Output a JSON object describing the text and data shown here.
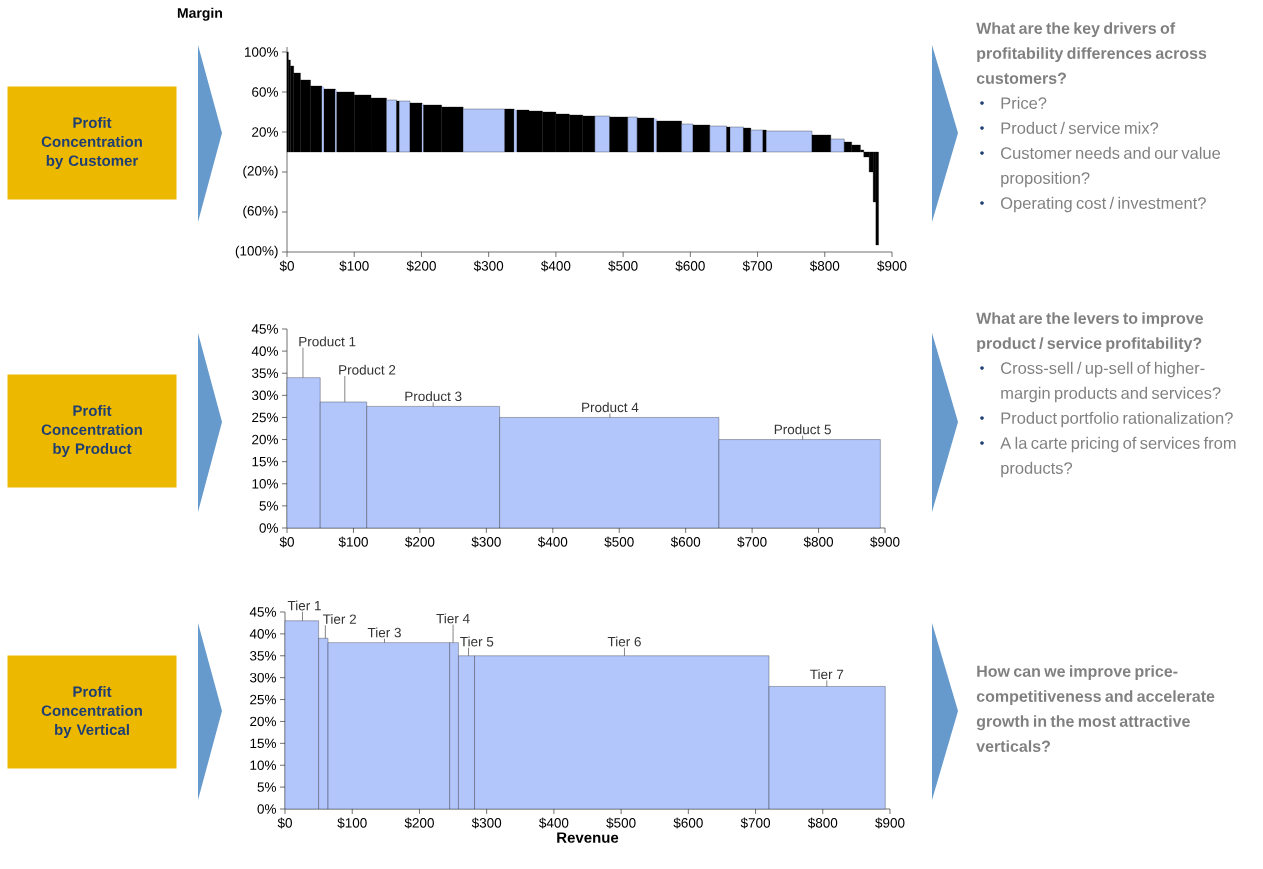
{
  "chart_data": [
    {
      "type": "histogram",
      "ylabel": "Margin",
      "bins": [
        0,
        2,
        5,
        10,
        20,
        35,
        52,
        55,
        72,
        74,
        100,
        125,
        148,
        163,
        167,
        183,
        201,
        203,
        230,
        262,
        324,
        338,
        342,
        360,
        380,
        400,
        420,
        440,
        458,
        480,
        507,
        521,
        546,
        550,
        587,
        604,
        629,
        654,
        659,
        679,
        690,
        708,
        713,
        781,
        809,
        829,
        840,
        853,
        858,
        866,
        872,
        876,
        880
      ],
      "values": [
        100,
        92,
        86,
        79,
        72,
        66,
        65,
        63,
        62,
        60,
        57,
        54,
        52,
        51,
        51,
        49,
        48,
        47,
        45,
        43,
        43,
        42,
        42,
        41,
        40,
        38,
        37,
        36,
        36,
        35,
        35,
        34,
        33,
        31,
        28,
        27,
        26,
        25,
        25,
        24,
        22,
        22,
        21,
        17,
        13,
        10,
        7,
        2,
        -5,
        -20,
        -50,
        -93
      ],
      "colors": [
        "#000000",
        "#000000",
        "#000000",
        "#000000",
        "#000000",
        "#000000",
        "#b3c6fc",
        "#000000",
        "#b3c6fc",
        "#000000",
        "#000000",
        "#000000",
        "#b3c6fc",
        "#000000",
        "#b3c6fc",
        "#000000",
        "#b3c6fc",
        "#000000",
        "#000000",
        "#b3c6fc",
        "#000000",
        "#b3c6fc",
        "#000000",
        "#000000",
        "#000000",
        "#000000",
        "#000000",
        "#000000",
        "#b3c6fc",
        "#000000",
        "#b3c6fc",
        "#000000",
        "#b3c6fc",
        "#000000",
        "#b3c6fc",
        "#000000",
        "#b3c6fc",
        "#000000",
        "#b3c6fc",
        "#000000",
        "#b3c6fc",
        "#000000",
        "#b3c6fc",
        "#000000",
        "#b3c6fc",
        "#000000",
        "#000000",
        "#000000",
        "#000000",
        "#000000",
        "#000000",
        "#000000"
      ],
      "xlim": [
        0,
        900
      ],
      "ylim": [
        -100,
        105
      ],
      "xticks": [
        {
          "value": 0,
          "label": "$0"
        },
        {
          "value": 100,
          "label": "$100"
        },
        {
          "value": 200,
          "label": "$200"
        },
        {
          "value": 300,
          "label": "$300"
        },
        {
          "value": 400,
          "label": "$400"
        },
        {
          "value": 500,
          "label": "$500"
        },
        {
          "value": 600,
          "label": "$600"
        },
        {
          "value": 700,
          "label": "$700"
        },
        {
          "value": 800,
          "label": "$800"
        },
        {
          "value": 900,
          "label": "$900"
        }
      ],
      "yticks": [
        {
          "value": 100,
          "label": "100%"
        },
        {
          "value": 60,
          "label": "60%"
        },
        {
          "value": 20,
          "label": "20%"
        },
        {
          "value": -20,
          "label": "(20%)"
        },
        {
          "value": -60,
          "label": "(60%)"
        },
        {
          "value": -100,
          "label": "(100%)"
        }
      ],
      "annotations": [
        "Profit Concentration by Customer",
        "What are the key drivers of profitability differences across customers?",
        "Price?",
        "Product / service mix?",
        "Customer needs and our value proposition?",
        "Operating cost / investment?"
      ]
    },
    {
      "type": "histogram",
      "bins": [
        0,
        50,
        120,
        320,
        650,
        893
      ],
      "values": [
        34,
        28.5,
        27.5,
        25,
        20
      ],
      "color": "#b3c6fc",
      "xlim": [
        0,
        900
      ],
      "ylim": [
        0,
        45
      ],
      "xticks": [
        {
          "value": 0,
          "label": "$0"
        },
        {
          "value": 100,
          "label": "$100"
        },
        {
          "value": 200,
          "label": "$200"
        },
        {
          "value": 300,
          "label": "$300"
        },
        {
          "value": 400,
          "label": "$400"
        },
        {
          "value": 500,
          "label": "$500"
        },
        {
          "value": 600,
          "label": "$600"
        },
        {
          "value": 700,
          "label": "$700"
        },
        {
          "value": 800,
          "label": "$800"
        },
        {
          "value": 900,
          "label": "$900"
        }
      ],
      "yticks": [
        {
          "value": 0,
          "label": "0%"
        },
        {
          "value": 5,
          "label": "5%"
        },
        {
          "value": 10,
          "label": "10%"
        },
        {
          "value": 15,
          "label": "15%"
        },
        {
          "value": 20,
          "label": "20%"
        },
        {
          "value": 25,
          "label": "25%"
        },
        {
          "value": 30,
          "label": "30%"
        },
        {
          "value": 35,
          "label": "35%"
        },
        {
          "value": 40,
          "label": "40%"
        },
        {
          "value": 45,
          "label": "45%"
        }
      ],
      "annotations": [
        "Profit Concentration by Product",
        {
          "text": "Product 1",
          "x": 24,
          "y": 34
        },
        {
          "text": "Product 2",
          "x": 87,
          "y": 28.5
        },
        {
          "text": "Product 3",
          "x": 220,
          "y": 27.5
        },
        {
          "text": "Product 4",
          "x": 486,
          "y": 25
        },
        {
          "text": "Product 5",
          "x": 776,
          "y": 20
        },
        "What are the levers to improve product / service profitability?",
        "Cross-sell / up-sell of higher-margin products and services?",
        "Product portfolio rationalization?",
        "A la carte pricing of services from products?"
      ]
    },
    {
      "type": "histogram",
      "xlabel": "Revenue",
      "bins": [
        0,
        50,
        64,
        245,
        258,
        282,
        720,
        893
      ],
      "values": [
        43,
        39,
        38,
        38,
        35,
        35,
        28
      ],
      "color": "#b3c6fc",
      "xlim": [
        0,
        900
      ],
      "ylim": [
        0,
        45
      ],
      "xticks": [
        {
          "value": 0,
          "label": "$0"
        },
        {
          "value": 100,
          "label": "$100"
        },
        {
          "value": 200,
          "label": "$200"
        },
        {
          "value": 300,
          "label": "$300"
        },
        {
          "value": 400,
          "label": "$400"
        },
        {
          "value": 500,
          "label": "$500"
        },
        {
          "value": 600,
          "label": "$600"
        },
        {
          "value": 700,
          "label": "$700"
        },
        {
          "value": 800,
          "label": "$800"
        },
        {
          "value": 900,
          "label": "$900"
        }
      ],
      "yticks": [
        {
          "value": 0,
          "label": "0%"
        },
        {
          "value": 5,
          "label": "5%"
        },
        {
          "value": 10,
          "label": "10%"
        },
        {
          "value": 15,
          "label": "15%"
        },
        {
          "value": 20,
          "label": "20%"
        },
        {
          "value": 25,
          "label": "25%"
        },
        {
          "value": 30,
          "label": "30%"
        },
        {
          "value": 35,
          "label": "35%"
        },
        {
          "value": 40,
          "label": "40%"
        },
        {
          "value": 45,
          "label": "45%"
        }
      ],
      "annotations": [
        "Profit Concentration by Vertical",
        {
          "text": "Tier 1",
          "x": 26,
          "y": 43
        },
        {
          "text": "Tier 2",
          "x": 60,
          "y": 39
        },
        {
          "text": "Tier 3",
          "x": 148,
          "y": 38
        },
        {
          "text": "Tier 4",
          "x": 250,
          "y": 38
        },
        {
          "text": "Tier 5",
          "x": 273,
          "y": 35
        },
        {
          "text": "Tier 6",
          "x": 505,
          "y": 35
        },
        {
          "text": "Tier 7",
          "x": 806,
          "y": 28
        },
        "How can we improve price-competitiveness and accelerate growth in the most attractive verticals?"
      ]
    }
  ]
}
